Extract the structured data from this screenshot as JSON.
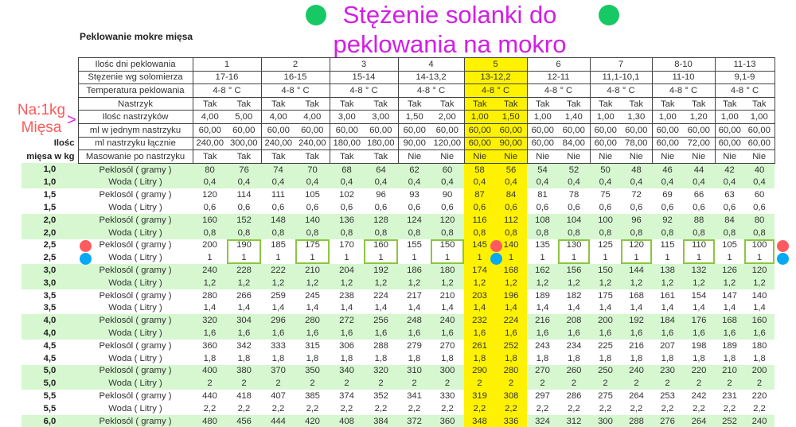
{
  "title_line1": "Stężenie solanki do",
  "title_line2": "peklowania na mokro",
  "subtitle": "Peklowanie mokre mięsa",
  "note_line1": "Na:1kg",
  "note_line2": "Mięsa",
  "note_arrow": ">",
  "ilosc_line1": "Ilośc",
  "ilosc_line2": "mięsa w kg",
  "colors": {
    "title": "#d21ee6",
    "highlight": "#fff200",
    "row_band": "#d6f7d0",
    "box": "#8cc63f",
    "dot_red": "#ff5a5f",
    "dot_blue": "#05a9f4",
    "dot_green": "#17c964"
  },
  "highlight_group": 5,
  "header": {
    "labels": [
      "Ilośc dni peklowania",
      "Stęzenie wg solomierza",
      "Temperatura peklowania",
      "Nastrzyk",
      "Ilośc nastrzyków",
      "ml w jednym nastrzyku",
      "ml nastrzyku łącznie",
      "Masowanie po nastrzyku"
    ],
    "days": [
      "1",
      "2",
      "3",
      "4",
      "5",
      "6",
      "7",
      "8-10",
      "11-13"
    ],
    "stezenie": [
      "17-16",
      "16-15",
      "15-14",
      "14-13,2",
      "13-12,2",
      "12-11",
      "11,1-10,1",
      "11-10",
      "9,1-9"
    ],
    "temperatura": [
      "4-8 ° C",
      "4-8 ° C",
      "4-8 ° C",
      "4-8 ° C",
      "4-8 ° C",
      "4-8 ° C",
      "4-8 ° C",
      "4-8 ° C",
      "4-8 ° C"
    ],
    "nastrzyk": [
      "Tak",
      "Tak",
      "Tak",
      "Tak",
      "Tak",
      "Tak",
      "Tak",
      "Tak",
      "Tak",
      "Tak",
      "Tak",
      "Tak",
      "Tak",
      "Tak",
      "Tak",
      "Tak",
      "Tak",
      "Tak"
    ],
    "ilosc_nastrzykow": [
      "4,00",
      "5,00",
      "4,00",
      "4,00",
      "3,00",
      "3,00",
      "1,50",
      "2,00",
      "1,00",
      "1,50",
      "1,00",
      "1,40",
      "1,00",
      "1,30",
      "1,00",
      "1,20",
      "1,00",
      "1,00"
    ],
    "ml_jeden": [
      "60,00",
      "60,00",
      "60,00",
      "60,00",
      "60,00",
      "60,00",
      "60,00",
      "60,00",
      "60,00",
      "60,00",
      "60,00",
      "60,00",
      "60,00",
      "60,00",
      "60,00",
      "60,00",
      "60,00",
      "60,00"
    ],
    "ml_lacznie": [
      "240,00",
      "300,00",
      "240,00",
      "240,00",
      "180,00",
      "180,00",
      "90,00",
      "120,00",
      "60,00",
      "90,00",
      "60,00",
      "84,00",
      "60,00",
      "78,00",
      "60,00",
      "72,00",
      "60,00",
      "60,00"
    ],
    "masowanie": [
      "Tak",
      "Tak",
      "Tak",
      "Tak",
      "Tak",
      "Tak",
      "Nie",
      "Nie",
      "Nie",
      "Nie",
      "Nie",
      "Nie",
      "Nie",
      "Nie",
      "Nie",
      "Nie",
      "Nie",
      "Nie"
    ]
  },
  "rows": [
    {
      "kg": "1,0",
      "label": "Peklosól ( gramy )",
      "values": [
        "80",
        "76",
        "74",
        "70",
        "68",
        "64",
        "62",
        "60",
        "58",
        "56",
        "54",
        "52",
        "50",
        "48",
        "46",
        "44",
        "42",
        "40"
      ]
    },
    {
      "kg": "1,0",
      "label": "Woda ( Litry )",
      "values": [
        "0,4",
        "0,4",
        "0,4",
        "0,4",
        "0,4",
        "0,4",
        "0,4",
        "0,4",
        "0,4",
        "0,4",
        "0,4",
        "0,4",
        "0,4",
        "0,4",
        "0,4",
        "0,4",
        "0,4",
        "0,4"
      ]
    },
    {
      "kg": "1,5",
      "label": "Peklosól ( gramy )",
      "values": [
        "120",
        "114",
        "111",
        "105",
        "102",
        "96",
        "93",
        "90",
        "87",
        "84",
        "81",
        "78",
        "75",
        "72",
        "69",
        "66",
        "63",
        "60"
      ]
    },
    {
      "kg": "1,5",
      "label": "Woda ( Litry )",
      "values": [
        "0,6",
        "0,6",
        "0,6",
        "0,6",
        "0,6",
        "0,6",
        "0,6",
        "0,6",
        "0,6",
        "0,6",
        "0,6",
        "0,6",
        "0,6",
        "0,6",
        "0,6",
        "0,6",
        "0,6",
        "0,6"
      ]
    },
    {
      "kg": "2,0",
      "label": "Peklosól ( gramy )",
      "values": [
        "160",
        "152",
        "148",
        "140",
        "136",
        "128",
        "124",
        "120",
        "116",
        "112",
        "108",
        "104",
        "100",
        "96",
        "92",
        "88",
        "84",
        "80"
      ]
    },
    {
      "kg": "2,0",
      "label": "Woda ( Litry )",
      "values": [
        "0,8",
        "0,8",
        "0,8",
        "0,8",
        "0,8",
        "0,8",
        "0,8",
        "0,8",
        "0,8",
        "0,8",
        "0,8",
        "0,8",
        "0,8",
        "0,8",
        "0,8",
        "0,8",
        "0,8",
        "0,8"
      ]
    },
    {
      "kg": "2,5",
      "label": "Peklosól ( gramy )",
      "values": [
        "200",
        "190",
        "185",
        "175",
        "170",
        "160",
        "155",
        "150",
        "145",
        "140",
        "135",
        "130",
        "125",
        "120",
        "115",
        "110",
        "105",
        "100"
      ]
    },
    {
      "kg": "2,5",
      "label": "Woda ( Litry )",
      "values": [
        "1",
        "1",
        "1",
        "1",
        "1",
        "1",
        "1",
        "1",
        "1",
        "1",
        "1",
        "1",
        "1",
        "1",
        "1",
        "1",
        "1",
        "1"
      ]
    },
    {
      "kg": "3,0",
      "label": "Peklosól ( gramy )",
      "values": [
        "240",
        "228",
        "222",
        "210",
        "204",
        "192",
        "186",
        "180",
        "174",
        "168",
        "162",
        "156",
        "150",
        "144",
        "138",
        "132",
        "126",
        "120"
      ]
    },
    {
      "kg": "3,0",
      "label": "Woda ( Litry )",
      "values": [
        "1,2",
        "1,2",
        "1,2",
        "1,2",
        "1,2",
        "1,2",
        "1,2",
        "1,2",
        "1,2",
        "1,2",
        "1,2",
        "1,2",
        "1,2",
        "1,2",
        "1,2",
        "1,2",
        "1,2",
        "1,2"
      ]
    },
    {
      "kg": "3,5",
      "label": "Peklosól ( gramy )",
      "values": [
        "280",
        "266",
        "259",
        "245",
        "238",
        "224",
        "217",
        "210",
        "203",
        "196",
        "189",
        "182",
        "175",
        "168",
        "161",
        "154",
        "147",
        "140"
      ]
    },
    {
      "kg": "3,5",
      "label": "Woda ( Litry )",
      "values": [
        "1,4",
        "1,4",
        "1,4",
        "1,4",
        "1,4",
        "1,4",
        "1,4",
        "1,4",
        "1,4",
        "1,4",
        "1,4",
        "1,4",
        "1,4",
        "1,4",
        "1,4",
        "1,4",
        "1,4",
        "1,4"
      ]
    },
    {
      "kg": "4,0",
      "label": "Peklosól ( gramy )",
      "values": [
        "320",
        "304",
        "296",
        "280",
        "272",
        "256",
        "248",
        "240",
        "232",
        "224",
        "216",
        "208",
        "200",
        "192",
        "184",
        "176",
        "168",
        "160"
      ]
    },
    {
      "kg": "4,0",
      "label": "Woda ( Litry )",
      "values": [
        "1,6",
        "1,6",
        "1,6",
        "1,6",
        "1,6",
        "1,6",
        "1,6",
        "1,6",
        "1,6",
        "1,6",
        "1,6",
        "1,6",
        "1,6",
        "1,6",
        "1,6",
        "1,6",
        "1,6",
        "1,6"
      ]
    },
    {
      "kg": "4,5",
      "label": "Peklosól ( gramy )",
      "values": [
        "360",
        "342",
        "333",
        "315",
        "306",
        "288",
        "279",
        "270",
        "261",
        "252",
        "243",
        "234",
        "225",
        "216",
        "207",
        "198",
        "189",
        "180"
      ]
    },
    {
      "kg": "4,5",
      "label": "Woda ( Litry )",
      "values": [
        "1,8",
        "1,8",
        "1,8",
        "1,8",
        "1,8",
        "1,8",
        "1,8",
        "1,8",
        "1,8",
        "1,8",
        "1,8",
        "1,8",
        "1,8",
        "1,8",
        "1,8",
        "1,8",
        "1,8",
        "1,8"
      ]
    },
    {
      "kg": "5,0",
      "label": "Peklosól ( gramy )",
      "values": [
        "400",
        "380",
        "370",
        "350",
        "340",
        "320",
        "310",
        "300",
        "290",
        "280",
        "270",
        "260",
        "250",
        "240",
        "230",
        "220",
        "210",
        "200"
      ]
    },
    {
      "kg": "5,0",
      "label": "Woda ( Litry )",
      "values": [
        "2",
        "2",
        "2",
        "2",
        "2",
        "2",
        "2",
        "2",
        "2",
        "2",
        "2",
        "2",
        "2",
        "2",
        "2",
        "2",
        "2",
        "2"
      ]
    },
    {
      "kg": "5,5",
      "label": "Peklosól ( gramy )",
      "values": [
        "440",
        "418",
        "407",
        "385",
        "374",
        "352",
        "341",
        "330",
        "319",
        "308",
        "297",
        "286",
        "275",
        "264",
        "253",
        "242",
        "231",
        "220"
      ]
    },
    {
      "kg": "5,5",
      "label": "Woda ( Litry )",
      "values": [
        "2,2",
        "2,2",
        "2,2",
        "2,2",
        "2,2",
        "2,2",
        "2,2",
        "2,2",
        "2,2",
        "2,2",
        "2,2",
        "2,2",
        "2,2",
        "2,2",
        "2,2",
        "2,2",
        "2,2",
        "2,2"
      ]
    },
    {
      "kg": "6,0",
      "label": "Peklosól ( gramy )",
      "values": [
        "480",
        "456",
        "444",
        "420",
        "408",
        "384",
        "372",
        "360",
        "348",
        "336",
        "324",
        "312",
        "300",
        "288",
        "276",
        "264",
        "252",
        "240"
      ]
    }
  ]
}
